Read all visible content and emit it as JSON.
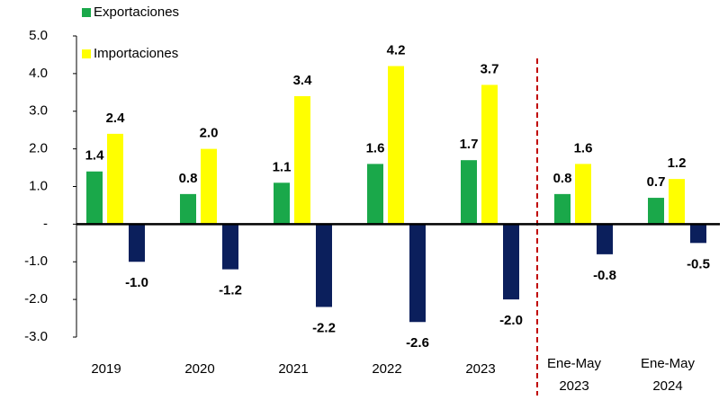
{
  "chart_data": {
    "type": "bar",
    "categories": [
      "2019",
      "2020",
      "2021",
      "2022",
      "2023",
      "Ene-May 2023",
      "Ene-May 2024"
    ],
    "series": [
      {
        "name": "Exportaciones",
        "color": "#1aa84a",
        "values": [
          1.4,
          0.8,
          1.1,
          1.6,
          1.7,
          0.8,
          0.7
        ],
        "value_labels": [
          "1.4",
          "0.8",
          "1.1",
          "1.6",
          "1.7",
          "0.8",
          "0.7"
        ]
      },
      {
        "name": "Importaciones",
        "color": "#ffff00",
        "values": [
          2.4,
          2.0,
          3.4,
          4.2,
          3.7,
          1.6,
          1.2
        ],
        "value_labels": [
          "2.4",
          "2.0",
          "3.4",
          "4.2",
          "3.7",
          "1.6",
          "1.2"
        ]
      },
      {
        "color": "#0b1f5c",
        "values": [
          -1.0,
          -1.2,
          -2.2,
          -2.6,
          -2.0,
          -0.8,
          -0.5
        ],
        "value_labels": [
          "-1.0",
          "-1.2",
          "-2.2",
          "-2.6",
          "-2.0",
          "-0.8",
          "-0.5"
        ]
      }
    ],
    "ylim": [
      -3,
      5
    ],
    "yticks": [
      {
        "value": 5,
        "label": "5.0"
      },
      {
        "value": 4,
        "label": "4.0"
      },
      {
        "value": 3,
        "label": "3.0"
      },
      {
        "value": 2,
        "label": "2.0"
      },
      {
        "value": 1,
        "label": "1.0"
      },
      {
        "value": 0,
        "label": "-"
      },
      {
        "value": -1,
        "label": "-1.0"
      },
      {
        "value": -2,
        "label": "-2.0"
      },
      {
        "value": -3,
        "label": "-3.0"
      }
    ],
    "grid": false,
    "legend": "top-left"
  }
}
